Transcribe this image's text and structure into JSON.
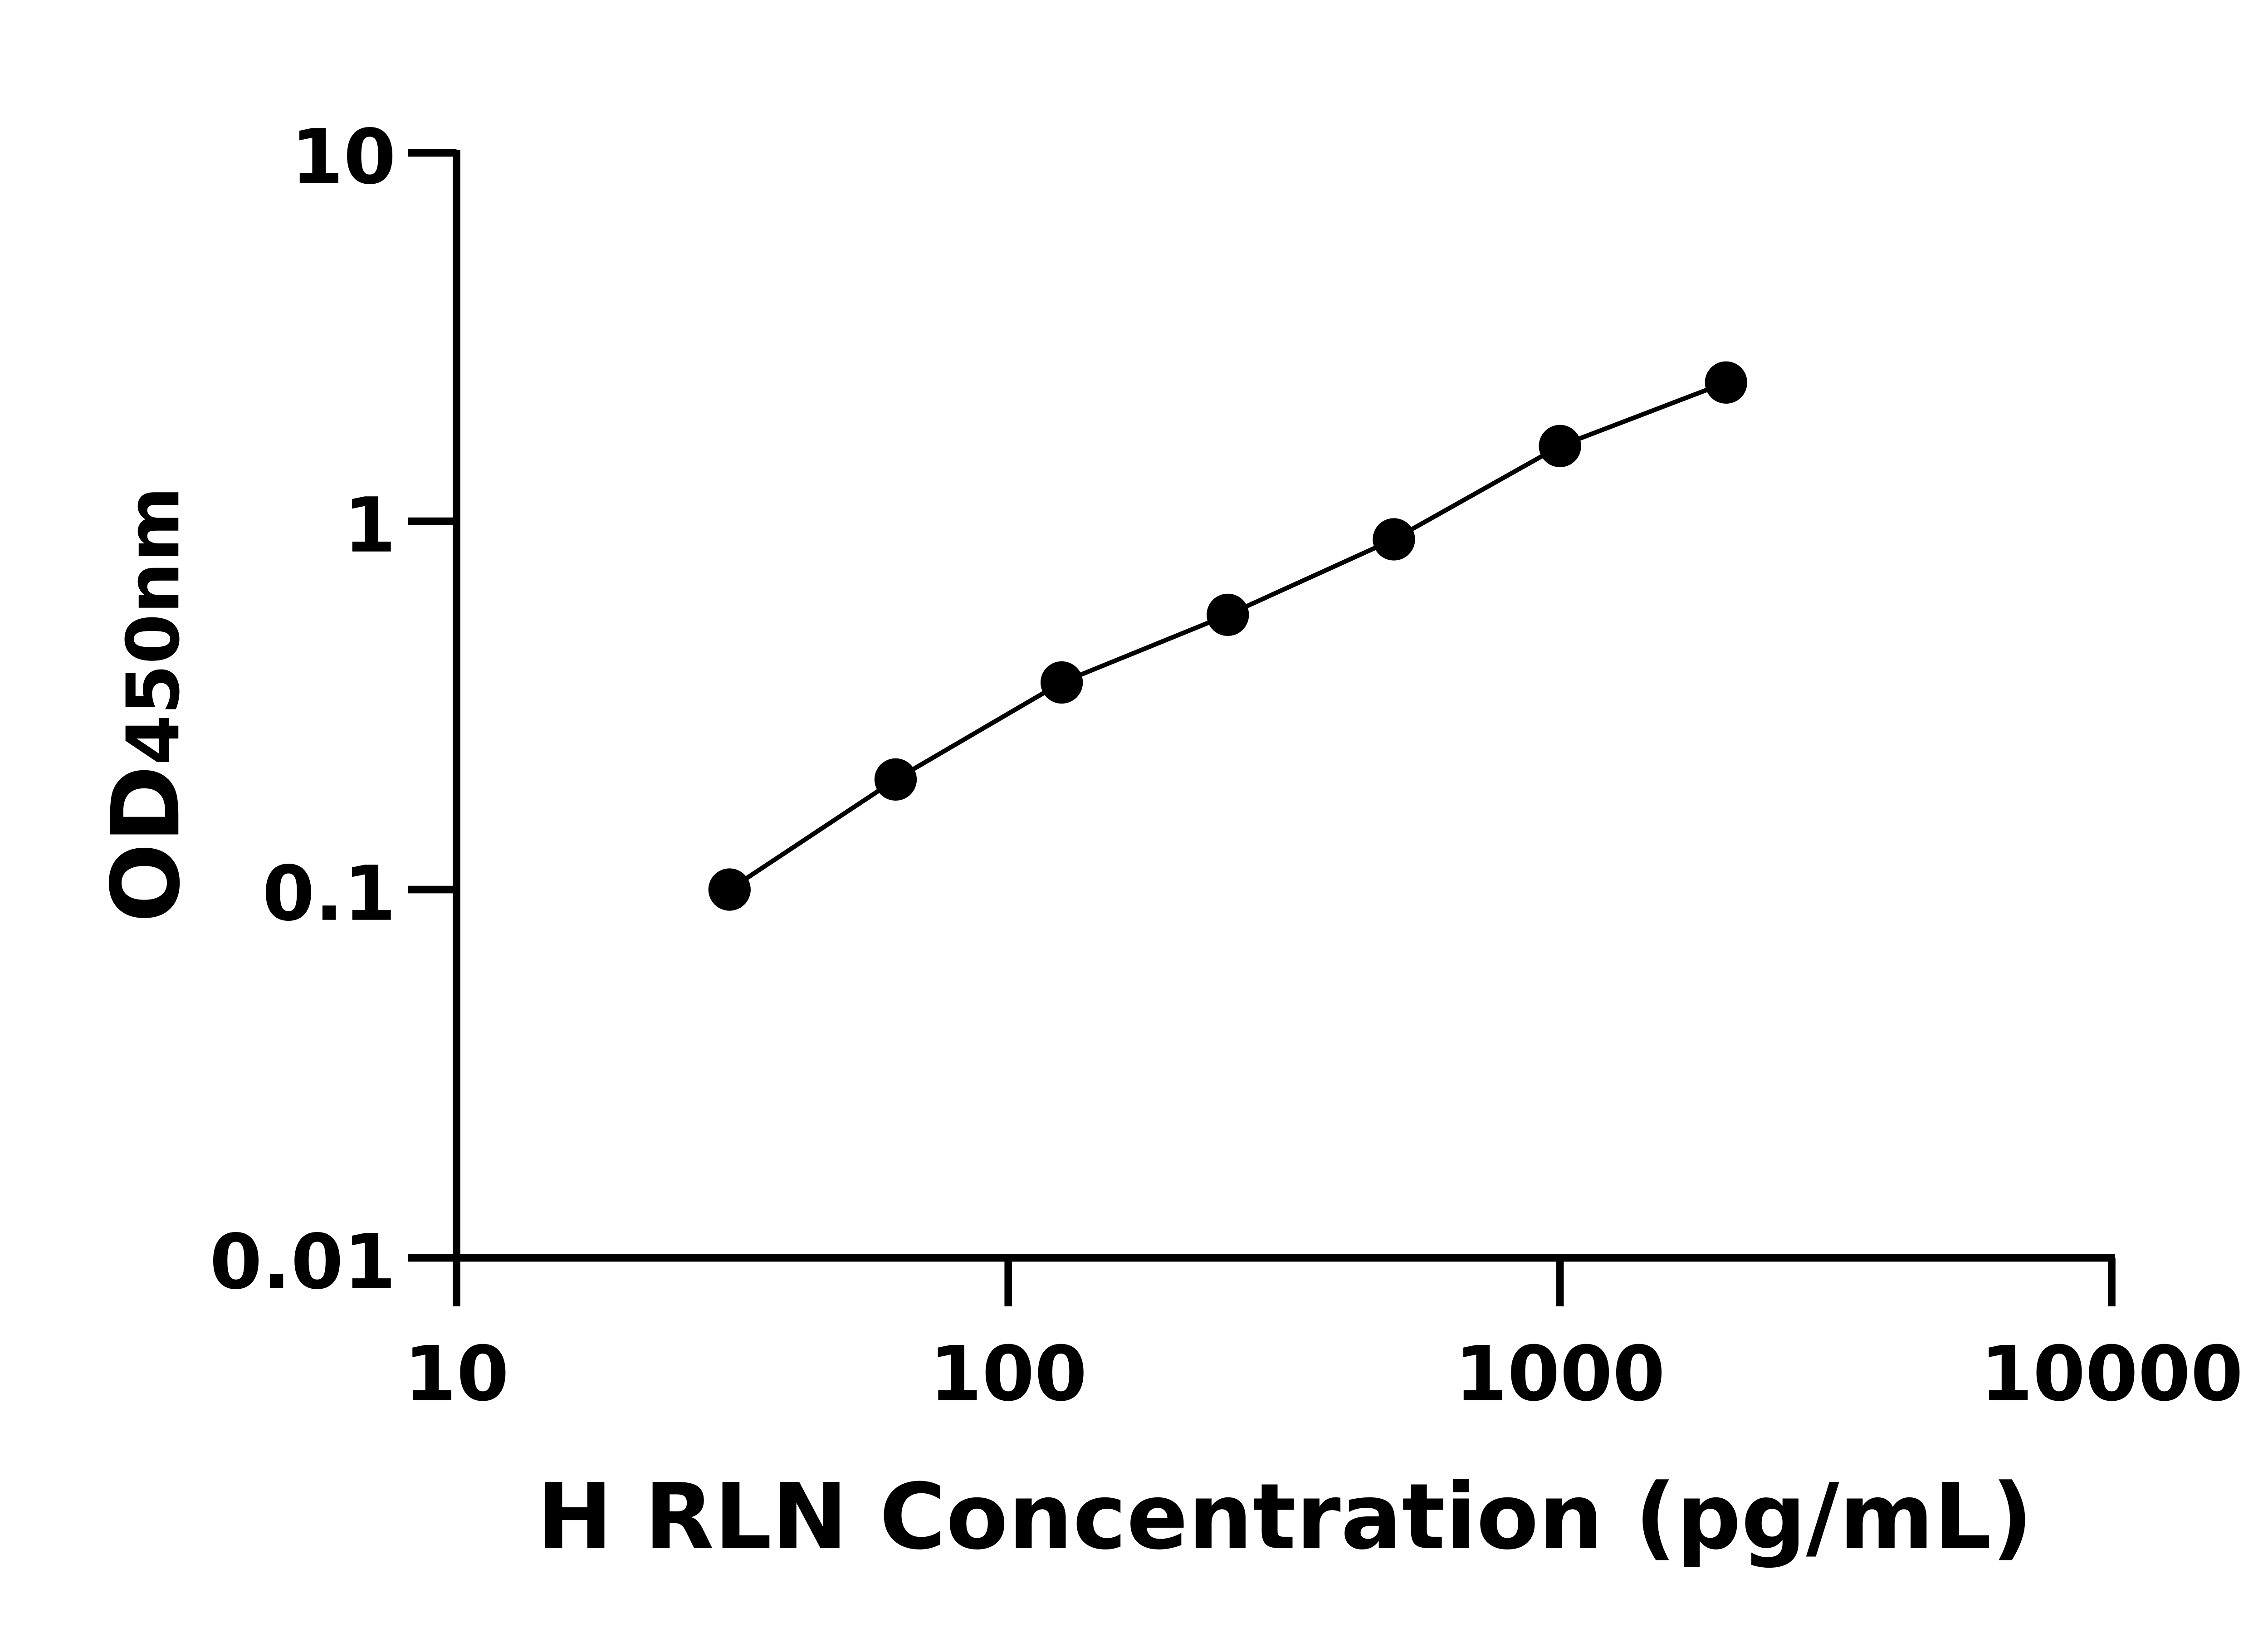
{
  "chart_data": {
    "type": "line",
    "title": "",
    "xlabel": "H RLN Concentration (pg/mL)",
    "ylabel_main": "OD",
    "ylabel_sub": "450nm",
    "x_scale": "log",
    "y_scale": "log",
    "xlim": [
      10,
      10000
    ],
    "ylim": [
      0.01,
      10
    ],
    "x_ticks": [
      "10",
      "100",
      "1000",
      "10000"
    ],
    "y_ticks": [
      "0.01",
      "0.1",
      "1",
      "10"
    ],
    "grid": false,
    "series": [
      {
        "x": [
          31.25,
          62.5,
          125,
          250,
          500,
          1000,
          2000
        ],
        "y": [
          0.1,
          0.199,
          0.365,
          0.557,
          0.893,
          1.6,
          2.38
        ]
      }
    ],
    "colors": {
      "marker": "#000000",
      "line": "#000000",
      "axis": "#000000"
    }
  }
}
